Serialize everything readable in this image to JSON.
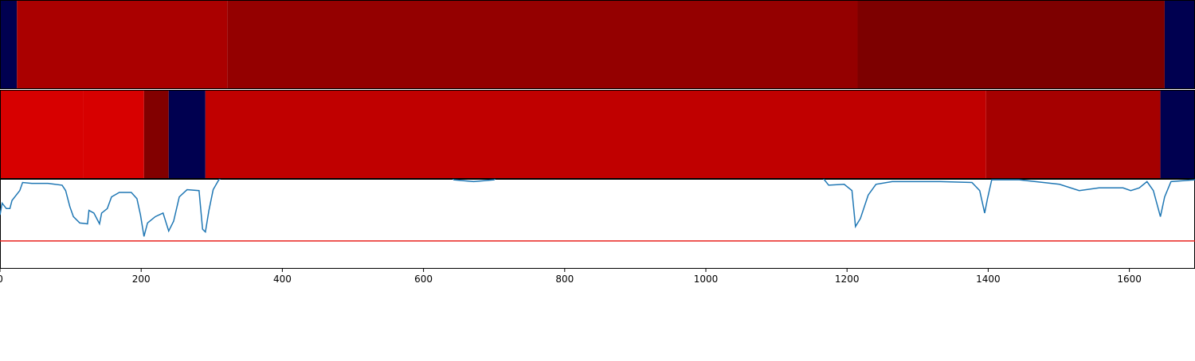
{
  "chart_data": {
    "type": "segmentation",
    "xlim": [
      0,
      1693
    ],
    "xticks": [
      0,
      200,
      400,
      600,
      800,
      1000,
      1200,
      1400,
      1600
    ],
    "segment_rows": [
      {
        "segments": [
          {
            "start": 0,
            "end": 24,
            "color": "#000050"
          },
          {
            "start": 24,
            "end": 322,
            "color": "#aa0000"
          },
          {
            "start": 322,
            "end": 1215,
            "color": "#940000"
          },
          {
            "start": 1215,
            "end": 1650,
            "color": "#7d0000"
          },
          {
            "start": 1650,
            "end": 1693,
            "color": "#000050"
          }
        ]
      },
      {
        "segments": [
          {
            "start": 0,
            "end": 118,
            "color": "#d70000"
          },
          {
            "start": 118,
            "end": 204,
            "color": "#d70000"
          },
          {
            "start": 204,
            "end": 239,
            "color": "#820000"
          },
          {
            "start": 239,
            "end": 291,
            "color": "#000050"
          },
          {
            "start": 291,
            "end": 1397,
            "color": "#c00000"
          },
          {
            "start": 1397,
            "end": 1644,
            "color": "#a50000"
          },
          {
            "start": 1644,
            "end": 1693,
            "color": "#000050"
          }
        ]
      }
    ],
    "ylim": [
      0,
      1
    ],
    "threshold": 0.31,
    "threshold_color": "#e8211d",
    "series": [
      {
        "color": "#1f77b4",
        "x": [
          0,
          3,
          9,
          14,
          17,
          28,
          32,
          45,
          68,
          88,
          93,
          99,
          104,
          113,
          124,
          126,
          133,
          141,
          144,
          152,
          158,
          169,
          186,
          194,
          199,
          204,
          209,
          220,
          231,
          239,
          246,
          254,
          265,
          282,
          287,
          291,
          296,
          302,
          310,
          327,
          632,
          643,
          671,
          700,
          711,
          1157,
          1168,
          1174,
          1196,
          1207,
          1212,
          1219,
          1230,
          1241,
          1264,
          1332,
          1377,
          1388,
          1395,
          1399,
          1405,
          1444,
          1501,
          1529,
          1557,
          1591,
          1602,
          1614,
          1625,
          1634,
          1644,
          1650,
          1659,
          1693
        ],
        "values": [
          0.6,
          0.73,
          0.67,
          0.67,
          0.76,
          0.87,
          0.96,
          0.95,
          0.95,
          0.93,
          0.87,
          0.69,
          0.58,
          0.51,
          0.5,
          0.65,
          0.62,
          0.5,
          0.62,
          0.67,
          0.8,
          0.85,
          0.85,
          0.78,
          0.6,
          0.36,
          0.51,
          0.58,
          0.62,
          0.42,
          0.53,
          0.8,
          0.88,
          0.87,
          0.44,
          0.41,
          0.65,
          0.88,
          0.99,
          1.1,
          1.1,
          0.99,
          0.97,
          0.99,
          1.1,
          1.1,
          0.99,
          0.93,
          0.94,
          0.87,
          0.47,
          0.56,
          0.82,
          0.94,
          0.97,
          0.97,
          0.96,
          0.87,
          0.62,
          0.78,
          0.99,
          0.99,
          0.94,
          0.87,
          0.9,
          0.9,
          0.87,
          0.9,
          0.97,
          0.87,
          0.58,
          0.8,
          0.97,
          0.99
        ]
      }
    ]
  }
}
